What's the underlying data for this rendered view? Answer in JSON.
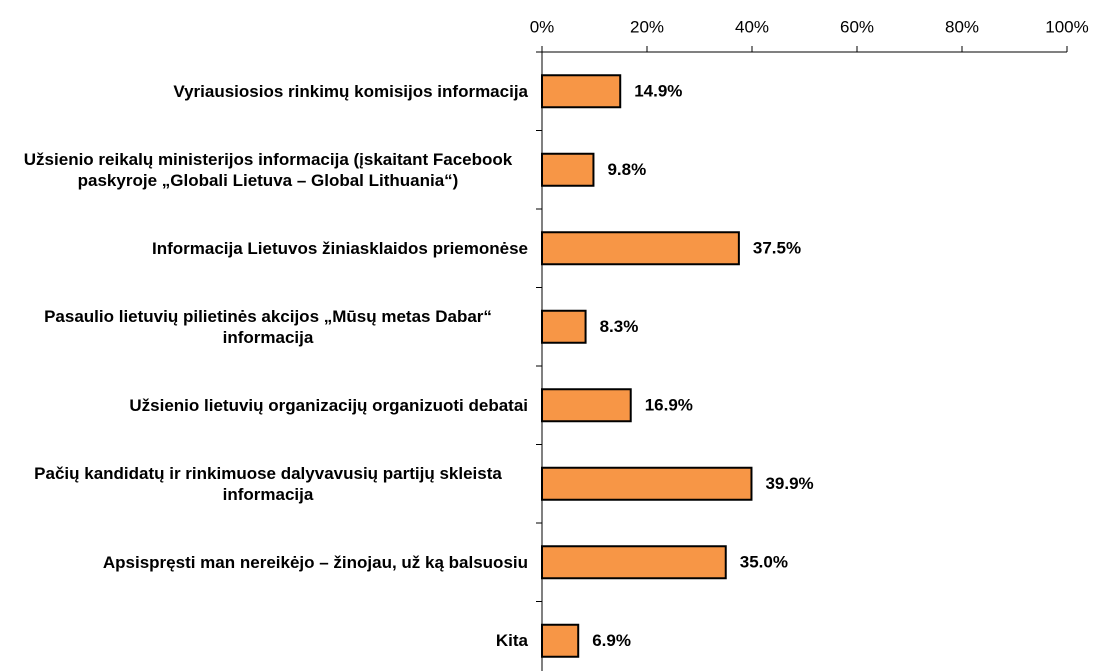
{
  "chart_data": {
    "type": "barh",
    "categories": [
      "Vyriausiosios rinkimų komisijos informacija",
      "Užsienio reikalų ministerijos informacija (įskaitant Facebook paskyroje „Globali Lietuva – Global Lithuania“)",
      "Informacija Lietuvos žiniasklaidos priemonėse",
      "Pasaulio lietuvių pilietinės akcijos „Mūsų metas Dabar“ informacija",
      "Užsienio lietuvių organizacijų organizuoti debatai",
      "Pačių kandidatų ir rinkimuose dalyvavusių partijų skleista informacija",
      "Apsispręsti man nereikėjo – žinojau, už ką balsuosiu",
      "Kita"
    ],
    "values": [
      14.9,
      9.8,
      37.5,
      8.3,
      16.9,
      39.9,
      35.0,
      6.9
    ],
    "value_labels": [
      "14.9%",
      "9.8%",
      "37.5%",
      "8.3%",
      "16.9%",
      "39.9%",
      "35.0%",
      "6.9%"
    ],
    "color": "#f79646",
    "xlim": [
      0,
      100
    ],
    "xticks": [
      {
        "value": 0,
        "label": "0%"
      },
      {
        "value": 20,
        "label": "20%"
      },
      {
        "value": 40,
        "label": "40%"
      },
      {
        "value": 60,
        "label": "60%"
      },
      {
        "value": 80,
        "label": "80%"
      },
      {
        "value": 100,
        "label": "100%"
      }
    ]
  }
}
